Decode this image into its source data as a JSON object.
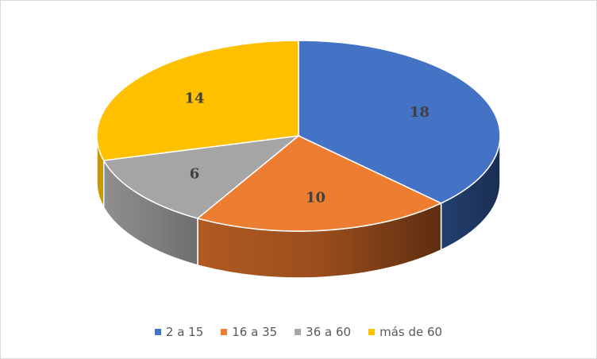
{
  "chart_data": {
    "type": "pie",
    "three_d": true,
    "title": "",
    "categories": [
      "2 a 15",
      "16 a 35",
      "36 a 60",
      "más de 60"
    ],
    "values": [
      18,
      10,
      6,
      14
    ],
    "colors": [
      "#4472c4",
      "#ed7d31",
      "#a5a5a5",
      "#ffc000"
    ],
    "data_labels": [
      "18",
      "10",
      "6",
      "14"
    ],
    "legend_position": "bottom"
  }
}
